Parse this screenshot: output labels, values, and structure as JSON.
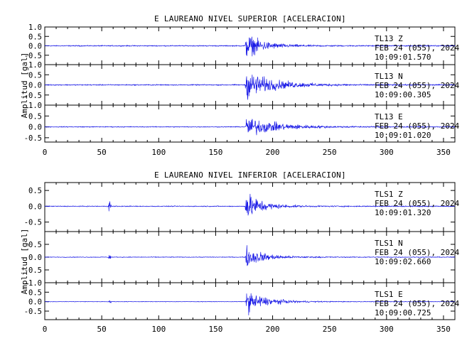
{
  "chart_data": [
    {
      "type": "line",
      "title": "E LAUREANO NIVEL SUPERIOR [ACELERACION]",
      "ylabel": "Amplitud  [gal]",
      "xlabel": "",
      "xlim": [
        0,
        360
      ],
      "x_ticks": [
        0,
        50,
        100,
        150,
        200,
        250,
        300,
        350
      ],
      "x_tick_labels": [
        "0",
        "50",
        "100",
        "150",
        "200",
        "250",
        "300",
        "350"
      ],
      "grid": false,
      "color": "#1a1ae6",
      "panels": [
        {
          "ylim": [
            -1.0,
            1.0
          ],
          "y_ticks": [
            -0.5,
            0.0,
            0.5,
            1.0
          ],
          "y_tick_labels": [
            "-0.5",
            "0.0",
            "0.5",
            "1.0"
          ],
          "station": "TL13   Z",
          "date": "FEB 24 (055), 2024",
          "time": "10:09:01.570",
          "envelope": {
            "noise": 0.04,
            "onset": 176.0,
            "peak": 0.85,
            "rise": 1.0,
            "decay": 14,
            "coda": 0.05
          }
        },
        {
          "ylim": [
            -1.0,
            1.0
          ],
          "y_ticks": [
            -0.5,
            0.0,
            0.5,
            1.0
          ],
          "y_tick_labels": [
            "-0.5",
            "0.0",
            "0.5",
            "1.0"
          ],
          "station": "TL13   N",
          "date": "FEB 24 (055), 2024",
          "time": "10:09:00.305",
          "envelope": {
            "noise": 0.04,
            "onset": 176.0,
            "peak": 0.9,
            "rise": 1.0,
            "decay": 22,
            "coda": 0.06
          }
        },
        {
          "ylim": [
            -0.7,
            1.0
          ],
          "y_ticks": [
            -0.5,
            0.0,
            0.5,
            1.0
          ],
          "y_tick_labels": [
            "-0.5",
            "0.0",
            "0.5",
            "1.0"
          ],
          "station": "TL13   E",
          "date": "FEB 24 (055), 2024",
          "time": "10:09:01.020",
          "envelope": {
            "noise": 0.03,
            "onset": 176.0,
            "peak": 0.6,
            "rise": 1.2,
            "decay": 25,
            "coda": 0.04
          }
        }
      ]
    },
    {
      "type": "line",
      "title": "E LAUREANO NIVEL INFERIOR [ACELERACION]",
      "ylabel": "Amplitud  [gal]",
      "xlabel": "",
      "xlim": [
        0,
        360
      ],
      "x_ticks": [
        0,
        50,
        100,
        150,
        200,
        250,
        300,
        350
      ],
      "x_tick_labels": [
        "0",
        "50",
        "100",
        "150",
        "200",
        "250",
        "300",
        "350"
      ],
      "grid": false,
      "color": "#1a1ae6",
      "panels": [
        {
          "ylim": [
            -0.8,
            0.75
          ],
          "y_ticks": [
            -0.5,
            0.0,
            0.5
          ],
          "y_tick_labels": [
            "-0.5",
            "0.0",
            "0.5"
          ],
          "station": "TLS1   Z",
          "date": "FEB 24 (055), 2024",
          "time": "10:09:01.320",
          "spike": {
            "x": 57,
            "amp": 0.3
          },
          "envelope": {
            "noise": 0.02,
            "onset": 176.0,
            "peak": 0.65,
            "rise": 1.0,
            "decay": 12,
            "coda": 0.03
          }
        },
        {
          "ylim": [
            -1.0,
            1.0
          ],
          "y_ticks": [
            -1.0,
            -0.5,
            0.0,
            0.5
          ],
          "y_tick_labels": [
            "-1.0",
            "-0.5",
            "0.0",
            "0.5"
          ],
          "station": "TLS1   N",
          "date": "FEB 24 (055), 2024",
          "time": "10:09:02.660",
          "spike": {
            "x": 57,
            "amp": 0.12
          },
          "envelope": {
            "noise": 0.02,
            "onset": 176.0,
            "peak": 0.55,
            "rise": 1.0,
            "decay": 14,
            "coda": 0.03
          }
        },
        {
          "ylim": [
            -0.95,
            1.0
          ],
          "y_ticks": [
            -0.5,
            0.0,
            0.5
          ],
          "y_tick_labels": [
            "-0.5",
            "0.0",
            "0.5"
          ],
          "station": "TLS1   E",
          "date": "FEB 24 (055), 2024",
          "time": "10:09:00.725",
          "spike": {
            "x": 57,
            "amp": 0.1
          },
          "envelope": {
            "noise": 0.02,
            "onset": 176.0,
            "peak": 0.8,
            "rise": 1.0,
            "decay": 16,
            "coda": 0.03
          }
        }
      ]
    }
  ]
}
